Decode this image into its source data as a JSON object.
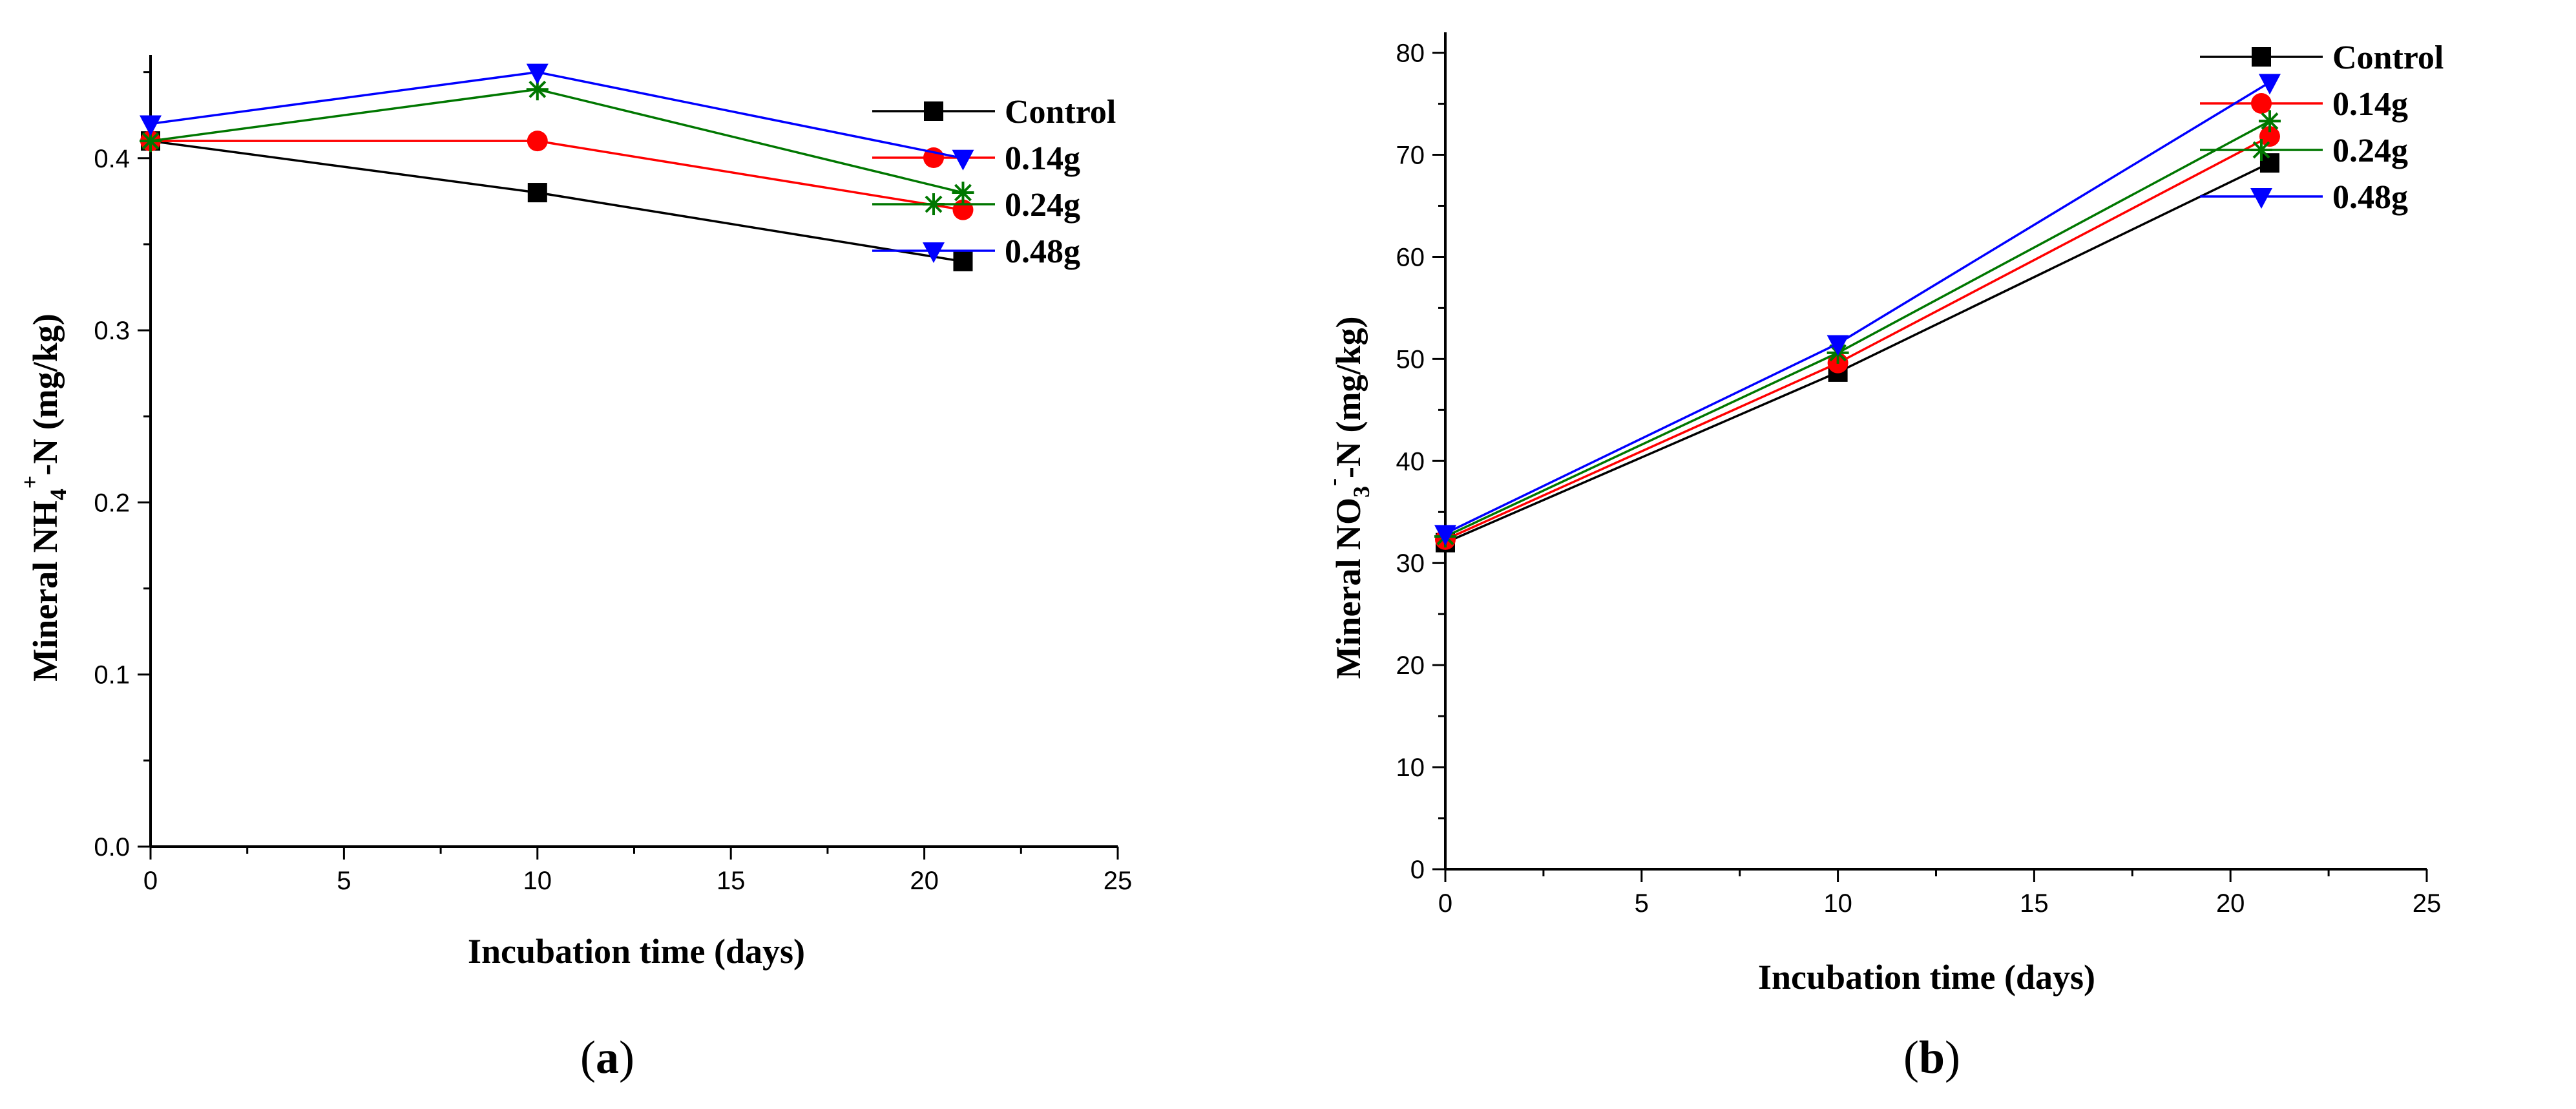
{
  "chart_data": [
    {
      "type": "line",
      "panel_label": "(a)",
      "panel_letter": "a",
      "xlabel": "Incubation time (days)",
      "ylabel_main": "Mineral NH",
      "ylabel_sub": "4",
      "ylabel_sup": "+",
      "ylabel_tail": "-N (mg/kg)",
      "xlim": [
        0,
        25
      ],
      "ylim": [
        0.0,
        0.46
      ],
      "xticks": [
        0,
        5,
        10,
        15,
        20,
        25
      ],
      "xtick_labels": [
        "0",
        "5",
        "10",
        "15",
        "20",
        "25"
      ],
      "yticks": [
        0.0,
        0.1,
        0.2,
        0.3,
        0.4
      ],
      "ytick_labels": [
        "0.0",
        "0.1",
        "0.2",
        "0.3",
        "0.4"
      ],
      "grid": false,
      "legend_position": "top-right",
      "x": [
        0,
        10,
        21
      ],
      "series": [
        {
          "name": "Control",
          "values": [
            0.41,
            0.38,
            0.34
          ],
          "color": "#000000",
          "marker": "square"
        },
        {
          "name": "0.14g",
          "values": [
            0.41,
            0.41,
            0.37
          ],
          "color": "#ff0000",
          "marker": "circle"
        },
        {
          "name": "0.24g",
          "values": [
            0.41,
            0.44,
            0.38
          ],
          "color": "#007700",
          "marker": "asterisk"
        },
        {
          "name": "0.48g",
          "values": [
            0.42,
            0.45,
            0.4
          ],
          "color": "#0000ff",
          "marker": "triangle-down"
        }
      ]
    },
    {
      "type": "line",
      "panel_label": "(b)",
      "panel_letter": "b",
      "xlabel": "Incubation time (days)",
      "ylabel_main": "Mineral NO",
      "ylabel_sub": "3",
      "ylabel_sup": "-",
      "ylabel_tail": "-N (mg/kg)",
      "xlim": [
        0,
        25
      ],
      "ylim": [
        0,
        82
      ],
      "xticks": [
        0,
        5,
        10,
        15,
        20,
        25
      ],
      "xtick_labels": [
        "0",
        "5",
        "10",
        "15",
        "20",
        "25"
      ],
      "yticks": [
        0,
        10,
        20,
        30,
        40,
        50,
        60,
        70,
        80
      ],
      "ytick_labels": [
        "0",
        "10",
        "20",
        "30",
        "40",
        "50",
        "60",
        "70",
        "80"
      ],
      "grid": false,
      "legend_position": "top-right",
      "x": [
        0,
        10,
        21
      ],
      "series": [
        {
          "name": "Control",
          "values": [
            32.0,
            48.7,
            69.2
          ],
          "color": "#000000",
          "marker": "square"
        },
        {
          "name": "0.14g",
          "values": [
            32.3,
            49.6,
            71.8
          ],
          "color": "#ff0000",
          "marker": "circle"
        },
        {
          "name": "0.24g",
          "values": [
            32.6,
            50.6,
            73.3
          ],
          "color": "#007700",
          "marker": "asterisk"
        },
        {
          "name": "0.48g",
          "values": [
            32.9,
            51.5,
            77.1
          ],
          "color": "#0000ff",
          "marker": "triangle-down"
        }
      ]
    }
  ]
}
